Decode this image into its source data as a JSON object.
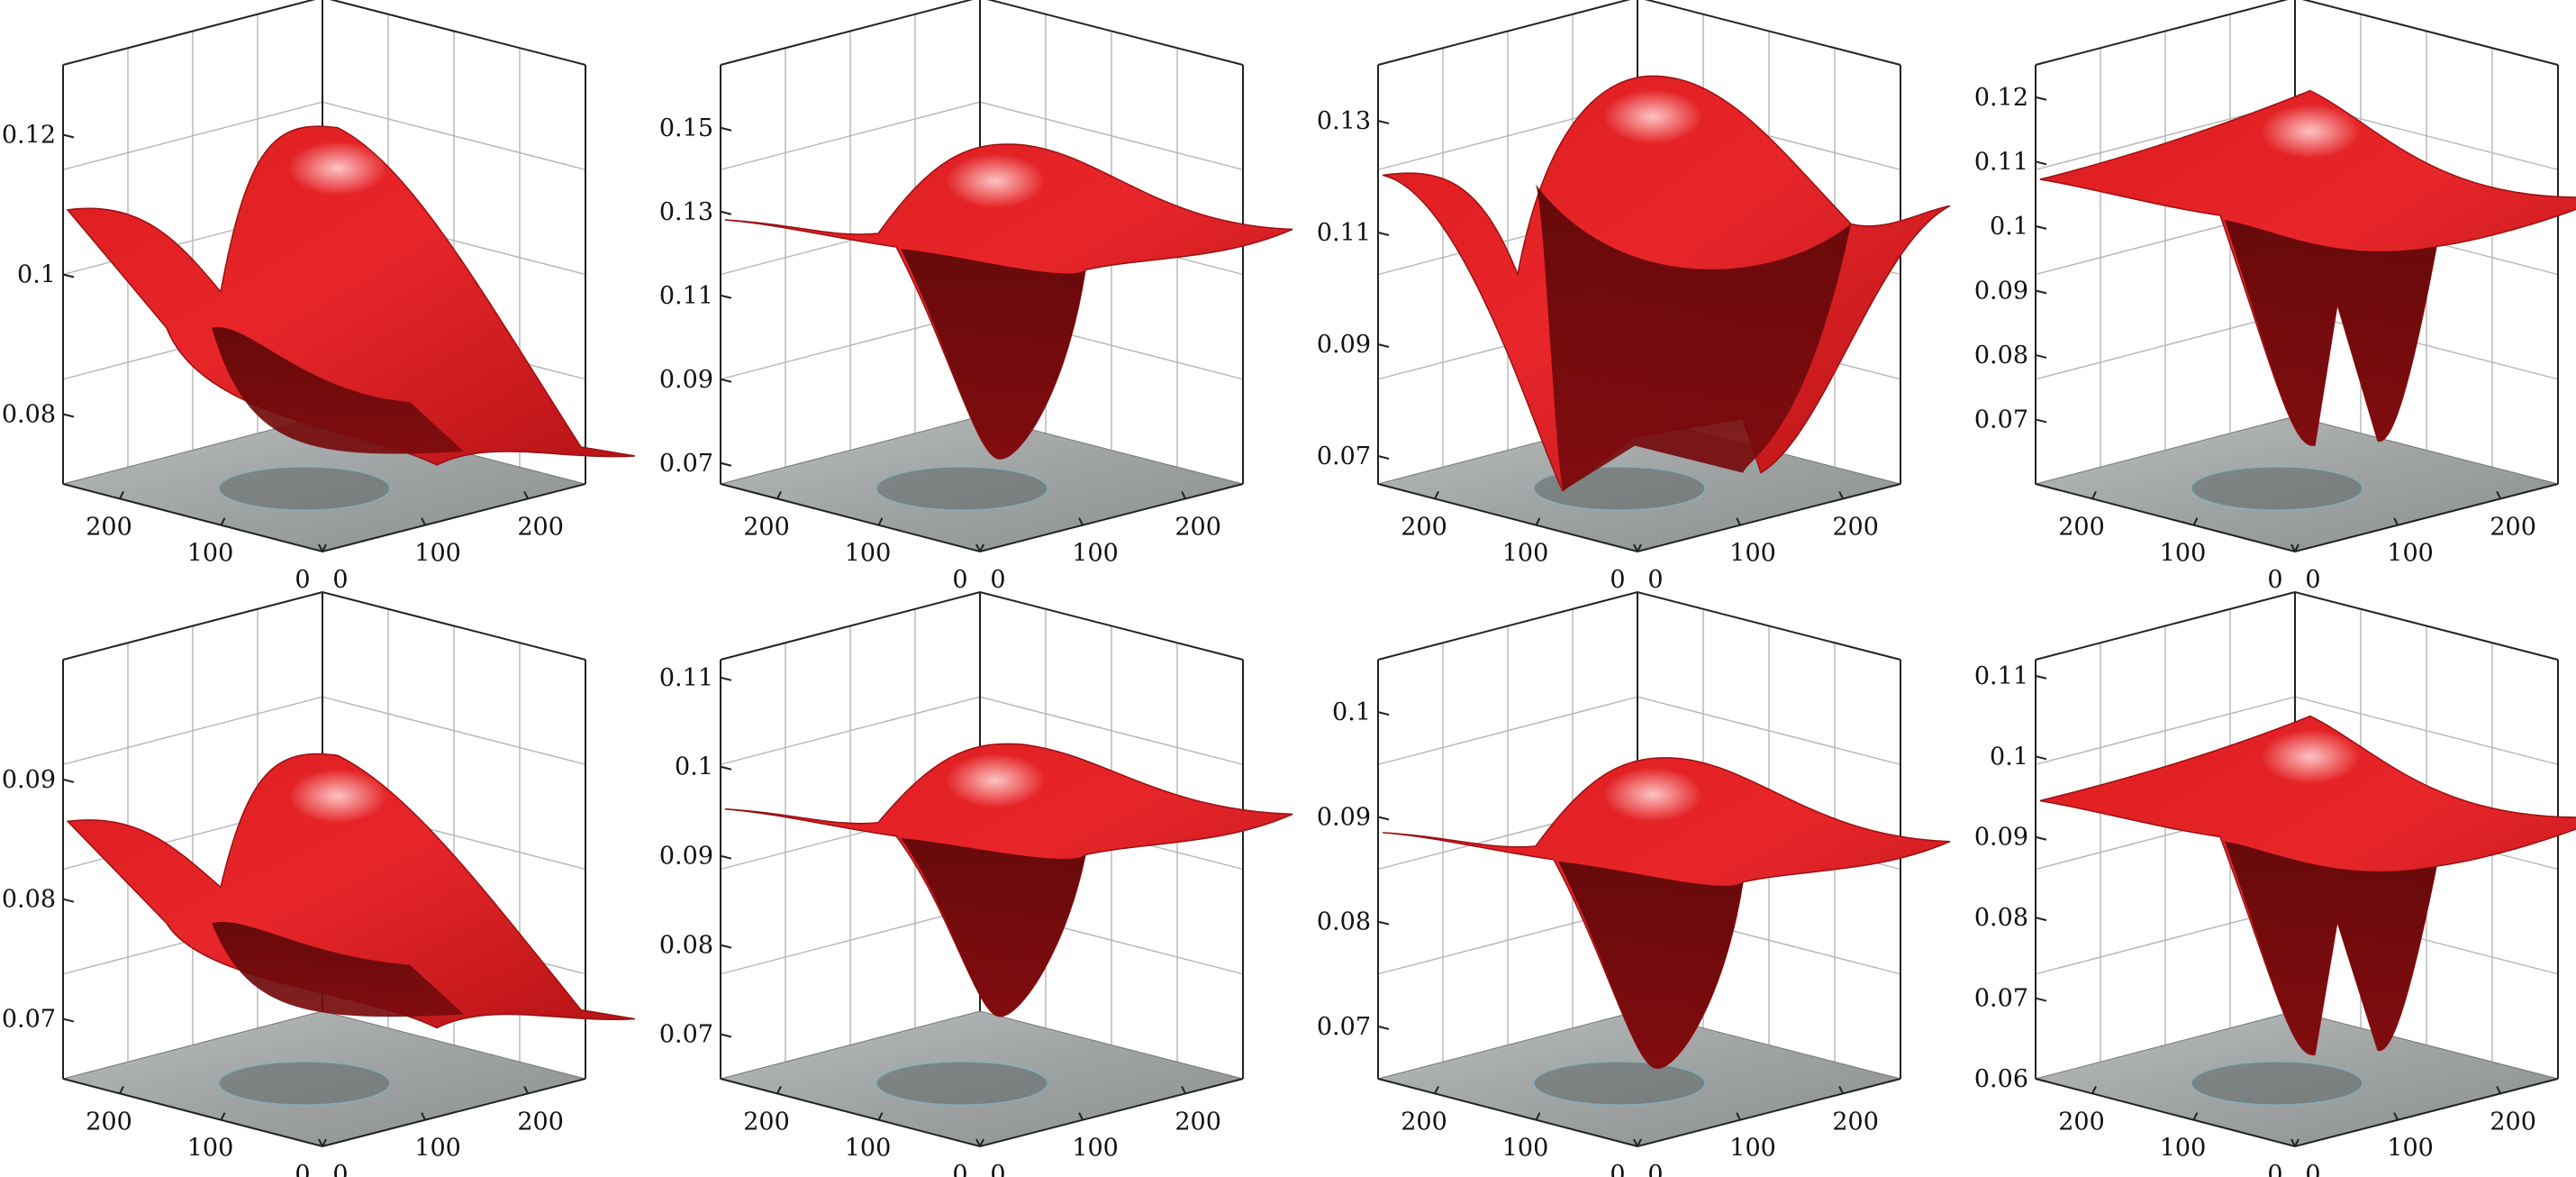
{
  "colors": {
    "surface": "#dd1c1f",
    "surface_dark": "#7a0b0d",
    "surface_highlight": "#ffd6d6",
    "floor": "#9fa3a3",
    "frame": "#222222",
    "grid": "#b5b5b5"
  },
  "chart_data": [
    {
      "type": "surface",
      "panel": "top-1",
      "shape": "ridge-left-high",
      "xlim": [
        0,
        256
      ],
      "ylim": [
        0,
        256
      ],
      "zlim": [
        0.07,
        0.13
      ],
      "x_ticks": [
        "0",
        "100",
        "200"
      ],
      "y_ticks": [
        "0",
        "100",
        "200"
      ],
      "z_ticks": [
        {
          "v": 0.08,
          "label": "0.08"
        },
        {
          "v": 0.1,
          "label": "0.1"
        },
        {
          "v": 0.12,
          "label": "0.12"
        }
      ],
      "surface_peak": 0.121,
      "surface_min": 0.074,
      "grid": true
    },
    {
      "type": "surface",
      "panel": "top-2",
      "shape": "funnel",
      "xlim": [
        0,
        256
      ],
      "ylim": [
        0,
        256
      ],
      "zlim": [
        0.065,
        0.165
      ],
      "x_ticks": [
        "0",
        "100",
        "200"
      ],
      "y_ticks": [
        "0",
        "100",
        "200"
      ],
      "z_ticks": [
        {
          "v": 0.07,
          "label": "0.07"
        },
        {
          "v": 0.09,
          "label": "0.09"
        },
        {
          "v": 0.11,
          "label": "0.11"
        },
        {
          "v": 0.13,
          "label": "0.13"
        },
        {
          "v": 0.15,
          "label": "0.15"
        }
      ],
      "surface_peak": 0.147,
      "surface_min": 0.071,
      "grid": true
    },
    {
      "type": "surface",
      "panel": "top-3",
      "shape": "dome",
      "xlim": [
        0,
        256
      ],
      "ylim": [
        0,
        256
      ],
      "zlim": [
        0.065,
        0.14
      ],
      "x_ticks": [
        "0",
        "100",
        "200"
      ],
      "y_ticks": [
        "0",
        "100",
        "200"
      ],
      "z_ticks": [
        {
          "v": 0.07,
          "label": "0.07"
        },
        {
          "v": 0.09,
          "label": "0.09"
        },
        {
          "v": 0.11,
          "label": "0.11"
        },
        {
          "v": 0.13,
          "label": "0.13"
        }
      ],
      "surface_peak": 0.138,
      "surface_min": 0.067,
      "grid": true
    },
    {
      "type": "surface",
      "panel": "top-4",
      "shape": "double-funnel",
      "xlim": [
        0,
        256
      ],
      "ylim": [
        0,
        256
      ],
      "zlim": [
        0.06,
        0.125
      ],
      "x_ticks": [
        "0",
        "100",
        "200"
      ],
      "y_ticks": [
        "0",
        "100",
        "200"
      ],
      "z_ticks": [
        {
          "v": 0.07,
          "label": "0.07"
        },
        {
          "v": 0.08,
          "label": "0.08"
        },
        {
          "v": 0.09,
          "label": "0.09"
        },
        {
          "v": 0.1,
          "label": "0.1"
        },
        {
          "v": 0.11,
          "label": "0.11"
        },
        {
          "v": 0.12,
          "label": "0.12"
        }
      ],
      "surface_peak": 0.121,
      "surface_min": 0.066,
      "grid": true
    },
    {
      "type": "surface",
      "panel": "bottom-1",
      "shape": "ridge-left-high",
      "xlim": [
        0,
        256
      ],
      "ylim": [
        0,
        256
      ],
      "zlim": [
        0.065,
        0.1
      ],
      "x_ticks": [
        "0",
        "100",
        "200"
      ],
      "y_ticks": [
        "0",
        "100",
        "200"
      ],
      "z_ticks": [
        {
          "v": 0.07,
          "label": "0.07"
        },
        {
          "v": 0.08,
          "label": "0.08"
        },
        {
          "v": 0.09,
          "label": "0.09"
        }
      ],
      "surface_peak": 0.092,
      "surface_min": 0.07,
      "grid": true
    },
    {
      "type": "surface",
      "panel": "bottom-2",
      "shape": "funnel",
      "xlim": [
        0,
        256
      ],
      "ylim": [
        0,
        256
      ],
      "zlim": [
        0.065,
        0.112
      ],
      "x_ticks": [
        "0",
        "100",
        "200"
      ],
      "y_ticks": [
        "0",
        "100",
        "200"
      ],
      "z_ticks": [
        {
          "v": 0.07,
          "label": "0.07"
        },
        {
          "v": 0.08,
          "label": "0.08"
        },
        {
          "v": 0.09,
          "label": "0.09"
        },
        {
          "v": 0.1,
          "label": "0.1"
        },
        {
          "v": 0.11,
          "label": "0.11"
        }
      ],
      "surface_peak": 0.103,
      "surface_min": 0.072,
      "grid": true
    },
    {
      "type": "surface",
      "panel": "bottom-3",
      "shape": "funnel",
      "xlim": [
        0,
        256
      ],
      "ylim": [
        0,
        256
      ],
      "zlim": [
        0.065,
        0.105
      ],
      "x_ticks": [
        "0",
        "100",
        "200"
      ],
      "y_ticks": [
        "0",
        "100",
        "200"
      ],
      "z_ticks": [
        {
          "v": 0.07,
          "label": "0.07"
        },
        {
          "v": 0.08,
          "label": "0.08"
        },
        {
          "v": 0.09,
          "label": "0.09"
        },
        {
          "v": 0.1,
          "label": "0.1"
        }
      ],
      "surface_peak": 0.096,
      "surface_min": 0.066,
      "grid": true
    },
    {
      "type": "surface",
      "panel": "bottom-4",
      "shape": "double-funnel",
      "xlim": [
        0,
        256
      ],
      "ylim": [
        0,
        256
      ],
      "zlim": [
        0.06,
        0.112
      ],
      "x_ticks": [
        "0",
        "100",
        "200"
      ],
      "y_ticks": [
        "0",
        "100",
        "200"
      ],
      "z_ticks": [
        {
          "v": 0.06,
          "label": "0.06"
        },
        {
          "v": 0.07,
          "label": "0.07"
        },
        {
          "v": 0.08,
          "label": "0.08"
        },
        {
          "v": 0.09,
          "label": "0.09"
        },
        {
          "v": 0.1,
          "label": "0.1"
        },
        {
          "v": 0.11,
          "label": "0.11"
        }
      ],
      "surface_peak": 0.105,
      "surface_min": 0.063,
      "grid": true
    }
  ]
}
